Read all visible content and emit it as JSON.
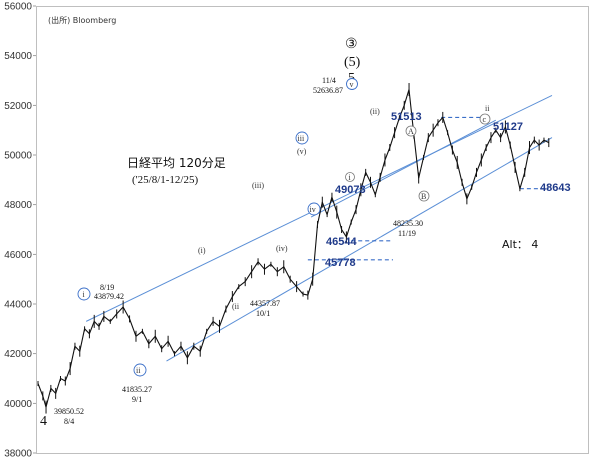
{
  "chart_data": {
    "type": "line",
    "title": "日経平均 120分足",
    "subtitle": "('25/8/1-12/25)",
    "source": "(出所) Bloomberg",
    "ylim": [
      38000,
      56000
    ],
    "yticks": [
      "38000",
      "40000",
      "42000",
      "44000",
      "46000",
      "48000",
      "50000",
      "52000",
      "54000",
      "56000"
    ],
    "alt_label": "Alt： 4",
    "price_series": {
      "name": "",
      "points": [
        {
          "x": 0,
          "y": 40800
        },
        {
          "x": 3,
          "y": 40300
        },
        {
          "x": 5,
          "y": 39850
        },
        {
          "x": 8,
          "y": 40600
        },
        {
          "x": 11,
          "y": 40400
        },
        {
          "x": 14,
          "y": 41000
        },
        {
          "x": 17,
          "y": 40900
        },
        {
          "x": 20,
          "y": 41400
        },
        {
          "x": 23,
          "y": 42300
        },
        {
          "x": 26,
          "y": 42100
        },
        {
          "x": 29,
          "y": 43000
        },
        {
          "x": 32,
          "y": 42800
        },
        {
          "x": 35,
          "y": 43300
        },
        {
          "x": 38,
          "y": 43100
        },
        {
          "x": 41,
          "y": 43500
        },
        {
          "x": 45,
          "y": 43300
        },
        {
          "x": 49,
          "y": 43600
        },
        {
          "x": 53,
          "y": 43879
        },
        {
          "x": 57,
          "y": 43400
        },
        {
          "x": 61,
          "y": 42700
        },
        {
          "x": 65,
          "y": 42900
        },
        {
          "x": 69,
          "y": 42400
        },
        {
          "x": 73,
          "y": 42700
        },
        {
          "x": 77,
          "y": 42200
        },
        {
          "x": 81,
          "y": 42500
        },
        {
          "x": 85,
          "y": 42000
        },
        {
          "x": 89,
          "y": 42300
        },
        {
          "x": 93,
          "y": 41835
        },
        {
          "x": 97,
          "y": 42300
        },
        {
          "x": 101,
          "y": 42100
        },
        {
          "x": 105,
          "y": 42900
        },
        {
          "x": 109,
          "y": 43300
        },
        {
          "x": 113,
          "y": 43100
        },
        {
          "x": 117,
          "y": 43800
        },
        {
          "x": 121,
          "y": 44300
        },
        {
          "x": 125,
          "y": 44700
        },
        {
          "x": 129,
          "y": 44900
        },
        {
          "x": 133,
          "y": 45300
        },
        {
          "x": 137,
          "y": 45700
        },
        {
          "x": 141,
          "y": 45400
        },
        {
          "x": 145,
          "y": 45600
        },
        {
          "x": 149,
          "y": 45300
        },
        {
          "x": 153,
          "y": 45500
        },
        {
          "x": 157,
          "y": 45000
        },
        {
          "x": 161,
          "y": 44700
        },
        {
          "x": 165,
          "y": 44400
        },
        {
          "x": 168,
          "y": 44358
        },
        {
          "x": 171,
          "y": 45000
        },
        {
          "x": 174,
          "y": 47200
        },
        {
          "x": 177,
          "y": 48100
        },
        {
          "x": 180,
          "y": 47600
        },
        {
          "x": 183,
          "y": 48300
        },
        {
          "x": 186,
          "y": 47700
        },
        {
          "x": 189,
          "y": 47000
        },
        {
          "x": 192,
          "y": 46700
        },
        {
          "x": 195,
          "y": 47300
        },
        {
          "x": 198,
          "y": 47800
        },
        {
          "x": 201,
          "y": 48600
        },
        {
          "x": 204,
          "y": 49300
        },
        {
          "x": 207,
          "y": 48900
        },
        {
          "x": 210,
          "y": 48400
        },
        {
          "x": 213,
          "y": 49100
        },
        {
          "x": 216,
          "y": 49800
        },
        {
          "x": 219,
          "y": 50300
        },
        {
          "x": 222,
          "y": 50900
        },
        {
          "x": 225,
          "y": 51500
        },
        {
          "x": 228,
          "y": 52000
        },
        {
          "x": 231,
          "y": 52637
        },
        {
          "x": 234,
          "y": 50800
        },
        {
          "x": 237,
          "y": 49073
        },
        {
          "x": 240,
          "y": 49900
        },
        {
          "x": 243,
          "y": 50700
        },
        {
          "x": 246,
          "y": 51000
        },
        {
          "x": 249,
          "y": 51300
        },
        {
          "x": 252,
          "y": 51513
        },
        {
          "x": 255,
          "y": 50900
        },
        {
          "x": 258,
          "y": 50200
        },
        {
          "x": 261,
          "y": 49700
        },
        {
          "x": 264,
          "y": 48900
        },
        {
          "x": 267,
          "y": 48235
        },
        {
          "x": 270,
          "y": 48700
        },
        {
          "x": 273,
          "y": 49300
        },
        {
          "x": 276,
          "y": 49800
        },
        {
          "x": 279,
          "y": 50300
        },
        {
          "x": 282,
          "y": 50700
        },
        {
          "x": 285,
          "y": 51000
        },
        {
          "x": 288,
          "y": 50700
        },
        {
          "x": 291,
          "y": 51127
        },
        {
          "x": 294,
          "y": 50400
        },
        {
          "x": 297,
          "y": 49500
        },
        {
          "x": 300,
          "y": 48643
        },
        {
          "x": 303,
          "y": 49300
        },
        {
          "x": 306,
          "y": 50300
        },
        {
          "x": 309,
          "y": 50600
        },
        {
          "x": 312,
          "y": 50400
        },
        {
          "x": 315,
          "y": 50600
        },
        {
          "x": 318,
          "y": 50500
        }
      ]
    },
    "channel_lines": [
      {
        "x1": 30,
        "y1": 43300,
        "x2": 320,
        "y2": 52400
      },
      {
        "x1": 80,
        "y1": 41700,
        "x2": 320,
        "y2": 50700
      },
      {
        "x1": 170,
        "y1": 47500,
        "x2": 285,
        "y2": 51400
      }
    ],
    "levels": [
      {
        "value": "51513",
        "y": 51513,
        "x1": 251,
        "x2": 281
      },
      {
        "value": "49073",
        "y": 49073
      },
      {
        "value": "51127",
        "y": 51127
      },
      {
        "value": "46544",
        "y": 46544,
        "x1": 195,
        "x2": 221
      },
      {
        "value": "45778",
        "y": 45778,
        "x1": 168,
        "x2": 221
      },
      {
        "value": "48643",
        "y": 48643,
        "x1": 300,
        "x2": 318
      }
    ],
    "annotations": {
      "bigwave_top": "③",
      "bigwave_mid": "(5)",
      "bigwave_num": "5",
      "peak_date": "11/4",
      "peak_value": "52636.87",
      "point_i_circle": "i",
      "point_i_date": "8/19",
      "point_i_value": "43879.42",
      "point_ii_circle": "ii",
      "point_ii_value": "41835.27",
      "point_ii_date": "9/1",
      "low_value": "39850.52",
      "low_date": "8/4",
      "low_wave": "4",
      "sub_i": "(i)",
      "sub_iii": "(iii)",
      "sub_ii": "(ii",
      "sub_ii_value": "44357.87",
      "sub_ii_date": "10/1",
      "sub_iv": "(iv)",
      "sub_v": "(v)",
      "iii_circle": "iii",
      "iv_circle": "iv",
      "v_circle": "v",
      "small_i": "i",
      "small_ii": "(ii)",
      "a_circle": "A",
      "b_circle": "B",
      "c_circle": "c",
      "roman_ii": "ii",
      "nov19_value": "48235.30",
      "nov19_date": "11/19"
    }
  }
}
